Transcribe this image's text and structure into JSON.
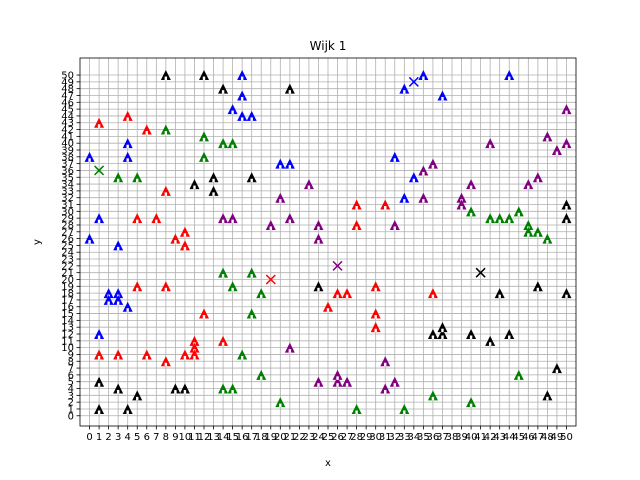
{
  "chart_data": {
    "type": "scatter",
    "title": "Wijk 1",
    "xlabel": "x",
    "ylabel": "y",
    "xlim": [
      -1,
      51
    ],
    "ylim": [
      -1.5,
      52.5
    ],
    "xticks": [
      0,
      1,
      2,
      3,
      4,
      5,
      6,
      7,
      8,
      9,
      10,
      11,
      12,
      13,
      14,
      15,
      16,
      17,
      18,
      19,
      20,
      21,
      22,
      23,
      24,
      25,
      26,
      27,
      28,
      29,
      30,
      31,
      32,
      33,
      34,
      35,
      36,
      37,
      38,
      39,
      40,
      41,
      42,
      43,
      44,
      45,
      46,
      47,
      48,
      49,
      50
    ],
    "yticks": [
      0,
      1,
      2,
      3,
      4,
      5,
      6,
      7,
      8,
      9,
      10,
      11,
      12,
      13,
      14,
      15,
      16,
      17,
      18,
      19,
      20,
      21,
      22,
      23,
      24,
      25,
      26,
      27,
      28,
      29,
      30,
      31,
      32,
      33,
      34,
      35,
      36,
      37,
      38,
      39,
      40,
      41,
      42,
      43,
      44,
      45,
      46,
      47,
      48,
      49,
      50
    ],
    "grid": true,
    "colors": {
      "blue": "#0000ff",
      "red": "#ff0000",
      "green": "#008000",
      "black": "#000000",
      "purple": "#800080"
    },
    "series": [
      {
        "color": "blue",
        "marker": "house",
        "points": [
          [
            16,
            50
          ],
          [
            35,
            50
          ],
          [
            44,
            50
          ],
          [
            33,
            48
          ],
          [
            16,
            47
          ],
          [
            37,
            47
          ],
          [
            15,
            45
          ],
          [
            16,
            44
          ],
          [
            17,
            44
          ],
          [
            4,
            40
          ],
          [
            32,
            38
          ],
          [
            0,
            38
          ],
          [
            4,
            38
          ],
          [
            20,
            37
          ],
          [
            21,
            37
          ],
          [
            34,
            35
          ],
          [
            33,
            32
          ],
          [
            1,
            29
          ],
          [
            0,
            26
          ],
          [
            3,
            25
          ],
          [
            2,
            18
          ],
          [
            3,
            18
          ],
          [
            2,
            17
          ],
          [
            3,
            17
          ],
          [
            4,
            16
          ],
          [
            1,
            12
          ]
        ]
      },
      {
        "color": "red",
        "marker": "house",
        "points": [
          [
            1,
            43
          ],
          [
            4,
            44
          ],
          [
            6,
            42
          ],
          [
            8,
            33
          ],
          [
            31,
            31
          ],
          [
            28,
            31
          ],
          [
            5,
            29
          ],
          [
            7,
            29
          ],
          [
            10,
            27
          ],
          [
            9,
            26
          ],
          [
            10,
            25
          ],
          [
            28,
            28
          ],
          [
            5,
            19
          ],
          [
            8,
            19
          ],
          [
            26,
            18
          ],
          [
            27,
            18
          ],
          [
            25,
            16
          ],
          [
            30,
            15
          ],
          [
            30,
            13
          ],
          [
            36,
            18
          ],
          [
            30,
            19
          ],
          [
            12,
            15
          ],
          [
            11,
            11
          ],
          [
            11,
            10
          ],
          [
            11,
            9
          ],
          [
            10,
            9
          ],
          [
            14,
            11
          ],
          [
            1,
            9
          ],
          [
            3,
            9
          ],
          [
            6,
            9
          ],
          [
            8,
            8
          ]
        ]
      },
      {
        "color": "green",
        "marker": "house",
        "points": [
          [
            8,
            42
          ],
          [
            12,
            41
          ],
          [
            12,
            38
          ],
          [
            14,
            40
          ],
          [
            15,
            40
          ],
          [
            3,
            35
          ],
          [
            5,
            35
          ],
          [
            42,
            29
          ],
          [
            43,
            29
          ],
          [
            44,
            29
          ],
          [
            40,
            30
          ],
          [
            45,
            30
          ],
          [
            46,
            28
          ],
          [
            46,
            27
          ],
          [
            47,
            27
          ],
          [
            48,
            26
          ],
          [
            14,
            21
          ],
          [
            17,
            21
          ],
          [
            15,
            19
          ],
          [
            18,
            18
          ],
          [
            17,
            15
          ],
          [
            16,
            9
          ],
          [
            18,
            6
          ],
          [
            14,
            4
          ],
          [
            15,
            4
          ],
          [
            20,
            2
          ],
          [
            28,
            1
          ],
          [
            33,
            1
          ],
          [
            36,
            3
          ],
          [
            40,
            2
          ],
          [
            45,
            6
          ]
        ]
      },
      {
        "color": "black",
        "marker": "house",
        "points": [
          [
            8,
            50
          ],
          [
            12,
            50
          ],
          [
            14,
            48
          ],
          [
            21,
            48
          ],
          [
            13,
            35
          ],
          [
            11,
            34
          ],
          [
            13,
            33
          ],
          [
            17,
            35
          ],
          [
            50,
            31
          ],
          [
            50,
            29
          ],
          [
            24,
            19
          ],
          [
            43,
            18
          ],
          [
            47,
            19
          ],
          [
            50,
            18
          ],
          [
            36,
            12
          ],
          [
            37,
            12
          ],
          [
            37,
            13
          ],
          [
            40,
            12
          ],
          [
            42,
            11
          ],
          [
            44,
            12
          ],
          [
            49,
            7
          ],
          [
            1,
            5
          ],
          [
            3,
            4
          ],
          [
            5,
            3
          ],
          [
            9,
            4
          ],
          [
            10,
            4
          ],
          [
            1,
            1
          ],
          [
            4,
            1
          ],
          [
            48,
            3
          ]
        ]
      },
      {
        "color": "purple",
        "marker": "house",
        "points": [
          [
            50,
            45
          ],
          [
            48,
            41
          ],
          [
            50,
            40
          ],
          [
            49,
            39
          ],
          [
            42,
            40
          ],
          [
            36,
            37
          ],
          [
            35,
            36
          ],
          [
            40,
            34
          ],
          [
            46,
            34
          ],
          [
            47,
            35
          ],
          [
            39,
            32
          ],
          [
            39,
            31
          ],
          [
            35,
            32
          ],
          [
            23,
            34
          ],
          [
            20,
            32
          ],
          [
            19,
            28
          ],
          [
            21,
            29
          ],
          [
            14,
            29
          ],
          [
            15,
            29
          ],
          [
            24,
            28
          ],
          [
            24,
            26
          ],
          [
            32,
            28
          ],
          [
            21,
            10
          ],
          [
            24,
            5
          ],
          [
            26,
            5
          ],
          [
            27,
            5
          ],
          [
            26,
            6
          ],
          [
            31,
            4
          ],
          [
            32,
            5
          ],
          [
            31,
            8
          ]
        ]
      },
      {
        "color": "blue",
        "marker": "x",
        "points": [
          [
            34,
            49
          ]
        ]
      },
      {
        "color": "green",
        "marker": "x",
        "points": [
          [
            1,
            36
          ]
        ]
      },
      {
        "color": "red",
        "marker": "x",
        "points": [
          [
            19,
            20
          ]
        ]
      },
      {
        "color": "purple",
        "marker": "x",
        "points": [
          [
            26,
            22
          ]
        ]
      },
      {
        "color": "black",
        "marker": "x",
        "points": [
          [
            41,
            21
          ]
        ]
      }
    ]
  }
}
